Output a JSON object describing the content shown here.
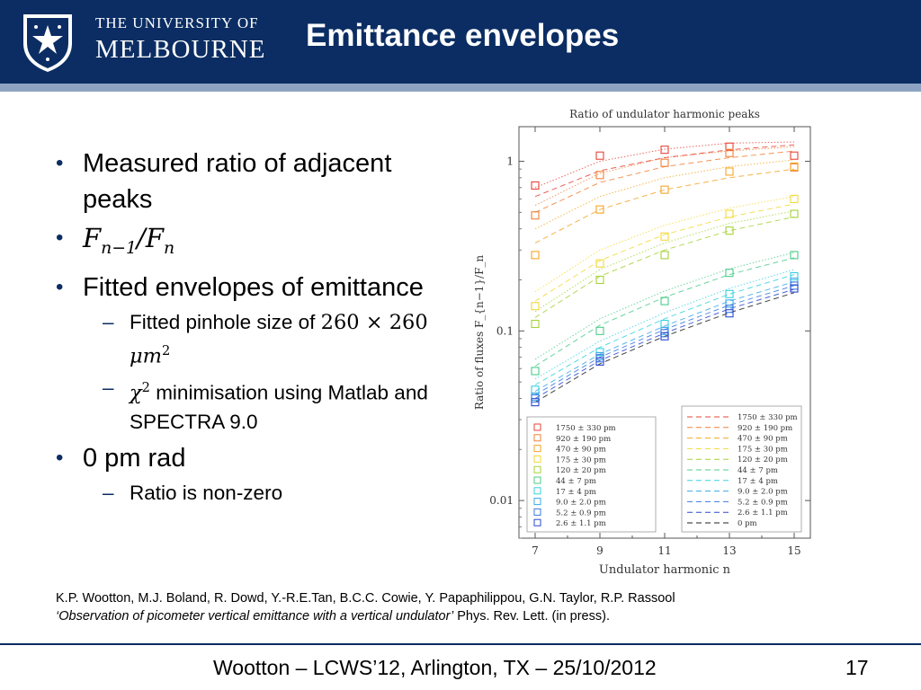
{
  "header": {
    "logo_line1": "THE UNIVERSITY OF",
    "logo_line2": "MELBOURNE",
    "title": "Emittance envelopes"
  },
  "bullets": {
    "b1": "Measured ratio of adjacent peaks",
    "b2_math": "F",
    "b2_sub1": "n−1",
    "b2_slash": "/F",
    "b2_sub2": "n",
    "b3": "Fitted envelopes of emittance",
    "sub1_text": "Fitted pinhole size of ",
    "sub1_math1": "260 × 260 ",
    "sub1_math2": "μm",
    "sub1_sup": "2",
    "sub2_chi": "χ",
    "sub2_sup": "2",
    "sub2_text": " minimisation using Matlab and SPECTRA 9.0",
    "b4": "0 pm rad",
    "sub3_text": "Ratio is non-zero"
  },
  "reference": {
    "line1": "K.P. Wootton, M.J. Boland, R. Dowd, Y.-R.E.Tan, B.C.C. Cowie, Y. Papaphilippou, G.N. Taylor, R.P. Rassool",
    "line2_italic": "‘Observation of picometer vertical emittance with a vertical undulator’",
    "line2_rest": "  Phys. Rev. Lett. (in press)."
  },
  "footer": {
    "text": "Wootton – LCWS’12, Arlington, TX – 25/10/2012",
    "page": "17"
  },
  "chart_data": {
    "type": "scatter",
    "title": "Ratio of undulator harmonic peaks",
    "xlabel": "Undulator harmonic n",
    "ylabel": "Ratio of fluxes F_{n−1}/F_n",
    "y_scale": "log",
    "ylim": [
      0.006,
      1.6
    ],
    "xlim": [
      6.5,
      15.5
    ],
    "x_ticks": [
      "7",
      "9",
      "11",
      "13",
      "15"
    ],
    "y_ticks": [
      "1",
      "0.1",
      "0.01"
    ],
    "x": [
      7,
      9,
      11,
      13,
      15
    ],
    "grid": false,
    "legend_markers_position": "bottom-left",
    "legend_lines_position": "bottom-right",
    "measured": [
      {
        "name": "1750 ± 330 pm",
        "color": "#e8443a",
        "values": [
          0.72,
          1.08,
          1.17,
          1.22,
          1.08
        ]
      },
      {
        "name": "920 ± 190 pm",
        "color": "#f0813a",
        "values": [
          0.48,
          0.83,
          0.98,
          1.12,
          0.92
        ]
      },
      {
        "name": "470 ± 90 pm",
        "color": "#f5a623",
        "values": [
          0.28,
          0.52,
          0.68,
          0.87,
          0.93
        ]
      },
      {
        "name": "175 ± 30 pm",
        "color": "#f2d93a",
        "values": [
          0.14,
          0.25,
          0.36,
          0.49,
          0.6
        ]
      },
      {
        "name": "120 ± 20 pm",
        "color": "#a6d23a",
        "values": [
          0.11,
          0.2,
          0.28,
          0.39,
          0.49
        ]
      },
      {
        "name": "44 ± 7 pm",
        "color": "#4ccc8a",
        "values": [
          0.058,
          0.1,
          0.15,
          0.22,
          0.28
        ]
      },
      {
        "name": "17 ± 4 pm",
        "color": "#3ad0e0",
        "values": [
          0.045,
          0.075,
          0.11,
          0.165,
          0.21
        ]
      },
      {
        "name": "9.0 ± 2.0 pm",
        "color": "#3aa8e8",
        "values": [
          0.041,
          0.071,
          0.1,
          0.145,
          0.195
        ]
      },
      {
        "name": "5.2 ± 0.9 pm",
        "color": "#3a78e0",
        "values": [
          0.04,
          0.069,
          0.097,
          0.135,
          0.185
        ]
      },
      {
        "name": "2.6 ± 1.1 pm",
        "color": "#2a48d0",
        "values": [
          0.038,
          0.066,
          0.093,
          0.127,
          0.178
        ]
      }
    ],
    "fitted": [
      {
        "name": "1750 ± 330 pm",
        "color": "#e8443a",
        "values": [
          0.62,
          0.88,
          1.05,
          1.17,
          1.25
        ]
      },
      {
        "name": "920 ± 190 pm",
        "color": "#f0813a",
        "values": [
          0.5,
          0.75,
          0.93,
          1.05,
          1.15
        ]
      },
      {
        "name": "470 ± 90 pm",
        "color": "#f5a623",
        "values": [
          0.33,
          0.52,
          0.68,
          0.8,
          0.9
        ]
      },
      {
        "name": "175 ± 30 pm",
        "color": "#f2d93a",
        "values": [
          0.15,
          0.26,
          0.37,
          0.47,
          0.56
        ]
      },
      {
        "name": "120 ± 20 pm",
        "color": "#a6d23a",
        "values": [
          0.12,
          0.21,
          0.3,
          0.39,
          0.47
        ]
      },
      {
        "name": "44 ± 7 pm",
        "color": "#4ccc8a",
        "values": [
          0.062,
          0.108,
          0.158,
          0.215,
          0.27
        ]
      },
      {
        "name": "17 ± 4 pm",
        "color": "#3ad0e0",
        "values": [
          0.048,
          0.08,
          0.118,
          0.165,
          0.215
        ]
      },
      {
        "name": "9.0 ± 2.0 pm",
        "color": "#3aa8e8",
        "values": [
          0.044,
          0.073,
          0.107,
          0.15,
          0.195
        ]
      },
      {
        "name": "5.2 ± 0.9 pm",
        "color": "#3a78e0",
        "values": [
          0.042,
          0.07,
          0.102,
          0.142,
          0.185
        ]
      },
      {
        "name": "2.6 ± 1.1 pm",
        "color": "#2a48d0",
        "values": [
          0.04,
          0.067,
          0.097,
          0.135,
          0.176
        ]
      },
      {
        "name": "0 pm",
        "color": "#222222",
        "values": [
          0.038,
          0.064,
          0.093,
          0.128,
          0.168
        ]
      }
    ],
    "envelopes": [
      {
        "color": "#e8443a",
        "values": [
          0.7,
          1.0,
          1.18,
          1.28,
          1.3
        ]
      },
      {
        "color": "#f0813a",
        "values": [
          0.55,
          0.85,
          1.05,
          1.15,
          1.22
        ]
      },
      {
        "color": "#f5a623",
        "values": [
          0.4,
          0.62,
          0.8,
          0.93,
          1.02
        ]
      },
      {
        "color": "#f2d93a",
        "values": [
          0.17,
          0.3,
          0.42,
          0.53,
          0.62
        ]
      },
      {
        "color": "#a6d23a",
        "values": [
          0.13,
          0.23,
          0.33,
          0.43,
          0.51
        ]
      },
      {
        "color": "#4ccc8a",
        "values": [
          0.068,
          0.118,
          0.172,
          0.232,
          0.29
        ]
      },
      {
        "color": "#3ad0e0",
        "values": [
          0.052,
          0.087,
          0.128,
          0.178,
          0.23
        ]
      }
    ]
  }
}
